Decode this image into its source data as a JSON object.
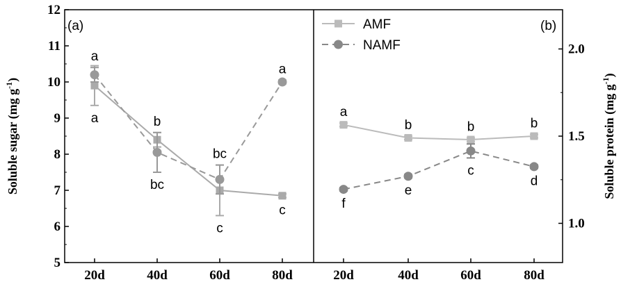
{
  "chart_data": [
    {
      "type": "line",
      "panel_label": "(a)",
      "categories": [
        "20d",
        "40d",
        "60d",
        "80d"
      ],
      "ylabel": "Soluble sugar  (mg g",
      "ylabel_sup": "-1",
      "ylabel_end": ")",
      "ylim": [
        5,
        12
      ],
      "yticks": [
        "5",
        "6",
        "7",
        "8",
        "9",
        "10",
        "11",
        "12"
      ],
      "grid": false,
      "series": [
        {
          "name": "AMF",
          "marker": "square",
          "line": "solid",
          "color": "#aaaaaa",
          "values": [
            9.9,
            8.4,
            7.0,
            6.85
          ],
          "errors": [
            0.55,
            0.2,
            0.7,
            0.05
          ],
          "letters": [
            "a",
            "b",
            "c",
            "c"
          ]
        },
        {
          "name": "NAMF",
          "marker": "circle",
          "line": "dashed",
          "color": "#999999",
          "values": [
            10.2,
            8.05,
            7.3,
            10.0
          ],
          "errors": [
            0.2,
            0.55,
            0.4,
            0.05
          ],
          "letters": [
            "a",
            "bc",
            "bc",
            "a"
          ]
        }
      ]
    },
    {
      "type": "line",
      "panel_label": "(b)",
      "categories": [
        "20d",
        "40d",
        "60d",
        "80d"
      ],
      "ylabel": "Soluble protein (mg g",
      "ylabel_sup": "-1",
      "ylabel_end": ")",
      "ylim": [
        0.775,
        2.225
      ],
      "yticks": [
        "1.0",
        "1.5",
        "2.0"
      ],
      "grid": false,
      "legend_position": "top-left",
      "series": [
        {
          "name": "AMF",
          "marker": "square",
          "line": "solid",
          "color": "#bbbbbb",
          "values": [
            1.565,
            1.49,
            1.48,
            1.5
          ],
          "errors": [
            0.01,
            0.01,
            0.01,
            0.01
          ],
          "letters": [
            "a",
            "b",
            "b",
            "b"
          ]
        },
        {
          "name": "NAMF",
          "marker": "circle",
          "line": "dashed",
          "color": "#888888",
          "values": [
            1.195,
            1.27,
            1.415,
            1.325
          ],
          "errors": [
            0.01,
            0.01,
            0.04,
            0.01
          ],
          "letters": [
            "f",
            "e",
            "c",
            "d"
          ]
        }
      ]
    }
  ]
}
